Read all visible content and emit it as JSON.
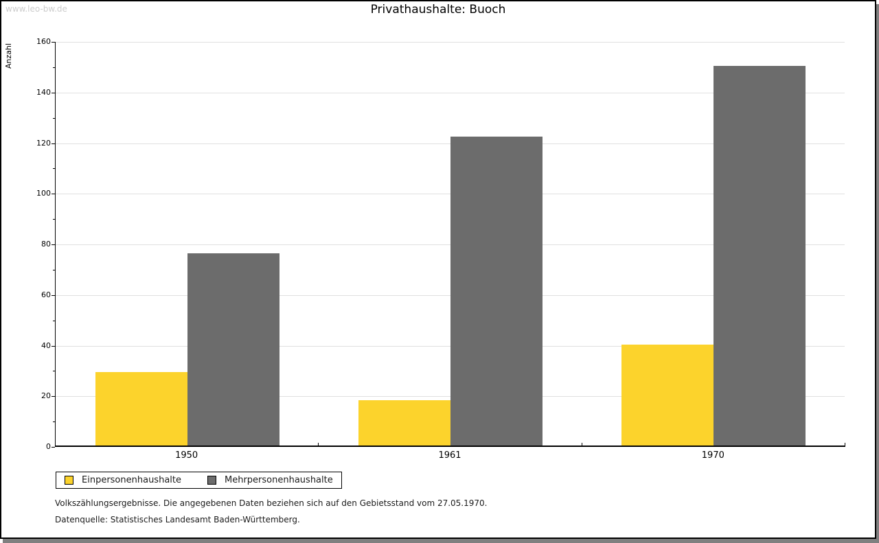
{
  "watermark": "www.leo-bw.de",
  "chart_data": {
    "type": "bar",
    "title": "Privathaushalte: Buoch",
    "ylabel": "Anzahl",
    "xlabel": "",
    "categories": [
      "1950",
      "1961",
      "1970"
    ],
    "series": [
      {
        "name": "Einpersonenhaushalte",
        "color": "#FCD32C",
        "values": [
          29,
          18,
          40
        ]
      },
      {
        "name": "Mehrpersonenhaushalte",
        "color": "#6C6C6C",
        "values": [
          76,
          122,
          150
        ]
      }
    ],
    "ylim": [
      0,
      160
    ],
    "y_major_interval": 20,
    "y_minor_interval": 10,
    "grid": "horizontal-major",
    "legend_position": "bottom-left"
  },
  "footnotes": {
    "line1": "Volkszählungsergebnisse. Die angegebenen Daten beziehen sich auf den Gebietsstand vom 27.05.1970.",
    "line2": "Datenquelle: Statistisches Landesamt Baden-Württemberg."
  },
  "colors": {
    "bar_yellow": "#FCD32C",
    "bar_gray": "#6C6C6C",
    "gridline": "#E0E0E0",
    "axis": "#000000",
    "watermark_text": "#CCCCCC",
    "frame_shadow": "#808080"
  }
}
